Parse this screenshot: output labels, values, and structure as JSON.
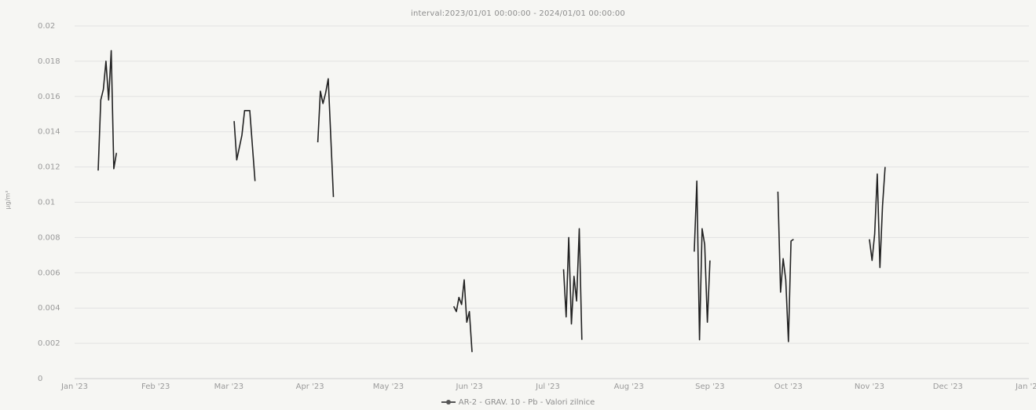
{
  "chart_data": {
    "type": "line",
    "title": "interval:2023/01/01 00:00:00 - 2024/01/01 00:00:00",
    "ylabel": "µg/m³",
    "xlabel": "",
    "ylim": [
      0,
      0.02
    ],
    "yticks": [
      0,
      0.002,
      0.004,
      0.006,
      0.008,
      0.01,
      0.012,
      0.014,
      0.016,
      0.018,
      0.02
    ],
    "ytick_labels": [
      "0",
      "0.002",
      "0.004",
      "0.006",
      "0.008",
      "0.01",
      "0.012",
      "0.014",
      "0.016",
      "0.018",
      "0.02"
    ],
    "xlim": [
      "2023-01-01",
      "2024-01-01"
    ],
    "xticks": [
      "2023-01-01",
      "2023-02-01",
      "2023-03-01",
      "2023-04-01",
      "2023-05-01",
      "2023-06-01",
      "2023-07-01",
      "2023-08-01",
      "2023-09-01",
      "2023-10-01",
      "2023-11-01",
      "2023-12-01",
      "2024-01-01"
    ],
    "xtick_labels": [
      "Jan '23",
      "Feb '23",
      "Mar '23",
      "Apr '23",
      "May '23",
      "Jun '23",
      "Jul '23",
      "Aug '23",
      "Sep '23",
      "Oct '23",
      "Nov '23",
      "Dec '23",
      "Jan '24"
    ],
    "grid": true,
    "legend_position": "bottom-center",
    "series": [
      {
        "name": "AR-2 - GRAV. 10 - Pb - Valori zilnice",
        "color": "#222222",
        "segments": [
          [
            [
              "2023-01-10",
              0.0118
            ],
            [
              "2023-01-11",
              0.0158
            ],
            [
              "2023-01-12",
              0.0164
            ],
            [
              "2023-01-13",
              0.018
            ],
            [
              "2023-01-14",
              0.0158
            ],
            [
              "2023-01-15",
              0.0186
            ],
            [
              "2023-01-16",
              0.0119
            ],
            [
              "2023-01-17",
              0.0128
            ]
          ],
          [
            [
              "2023-03-03",
              0.0146
            ],
            [
              "2023-03-04",
              0.0124
            ],
            [
              "2023-03-06",
              0.0138
            ],
            [
              "2023-03-07",
              0.0152
            ],
            [
              "2023-03-09",
              0.0152
            ],
            [
              "2023-03-11",
              0.0112
            ]
          ],
          [
            [
              "2023-04-04",
              0.0134
            ],
            [
              "2023-04-05",
              0.0163
            ],
            [
              "2023-04-06",
              0.0156
            ],
            [
              "2023-04-07",
              0.0162
            ],
            [
              "2023-04-08",
              0.017
            ],
            [
              "2023-04-10",
              0.0103
            ]
          ],
          [
            [
              "2023-05-26",
              0.0041
            ],
            [
              "2023-05-27",
              0.0038
            ],
            [
              "2023-05-28",
              0.0046
            ],
            [
              "2023-05-29",
              0.0042
            ],
            [
              "2023-05-30",
              0.0056
            ],
            [
              "2023-05-31",
              0.0032
            ],
            [
              "2023-06-01",
              0.0038
            ],
            [
              "2023-06-02",
              0.0015
            ]
          ],
          [
            [
              "2023-07-07",
              0.0062
            ],
            [
              "2023-07-08",
              0.0035
            ],
            [
              "2023-07-09",
              0.008
            ],
            [
              "2023-07-10",
              0.0031
            ],
            [
              "2023-07-11",
              0.0058
            ],
            [
              "2023-07-12",
              0.0044
            ],
            [
              "2023-07-13",
              0.0085
            ],
            [
              "2023-07-14",
              0.0022
            ]
          ],
          [
            [
              "2023-08-26",
              0.0072
            ],
            [
              "2023-08-27",
              0.0112
            ],
            [
              "2023-08-28",
              0.0022
            ],
            [
              "2023-08-29",
              0.0085
            ],
            [
              "2023-08-30",
              0.0076
            ],
            [
              "2023-08-31",
              0.0032
            ],
            [
              "2023-09-01",
              0.0067
            ]
          ],
          [
            [
              "2023-09-27",
              0.0106
            ],
            [
              "2023-09-28",
              0.0049
            ],
            [
              "2023-09-29",
              0.0068
            ],
            [
              "2023-09-30",
              0.0056
            ],
            [
              "2023-10-01",
              0.0021
            ],
            [
              "2023-10-02",
              0.0078
            ],
            [
              "2023-10-03",
              0.0079
            ]
          ],
          [
            [
              "2023-11-01",
              0.0079
            ],
            [
              "2023-11-02",
              0.0067
            ],
            [
              "2023-11-03",
              0.0082
            ],
            [
              "2023-11-04",
              0.0116
            ],
            [
              "2023-11-05",
              0.0063
            ],
            [
              "2023-11-06",
              0.0098
            ],
            [
              "2023-11-07",
              0.012
            ]
          ]
        ]
      }
    ]
  }
}
